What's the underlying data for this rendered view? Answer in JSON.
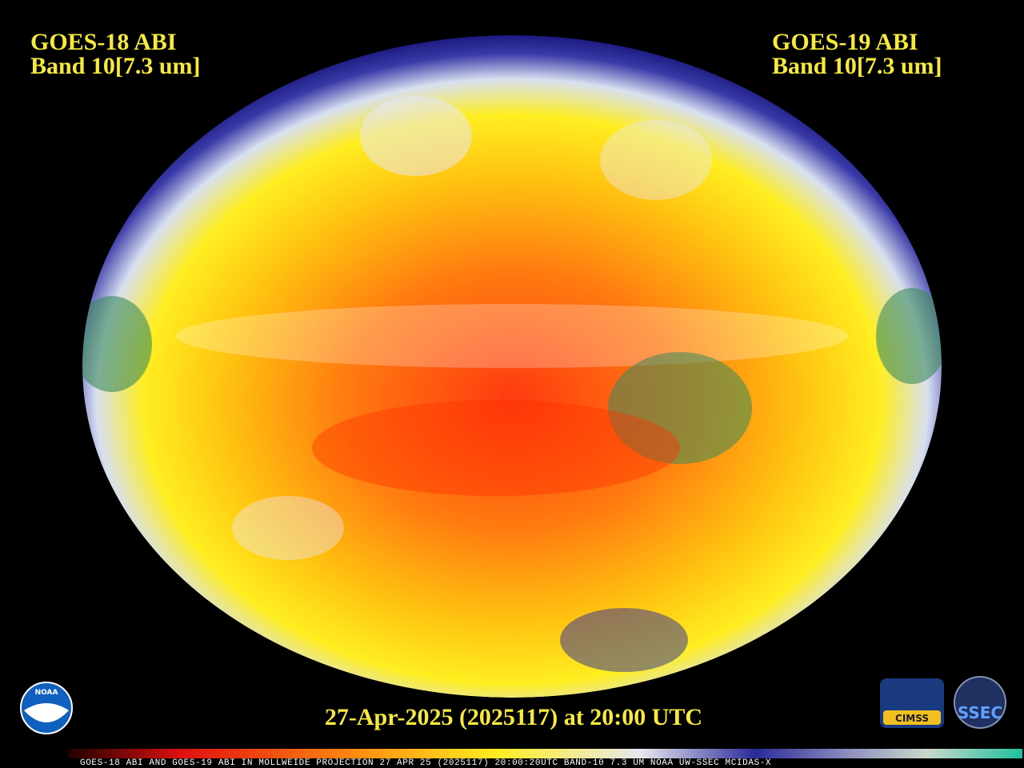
{
  "header": {
    "left": {
      "line1": "GOES-18 ABI",
      "line2": "Band 10[7.3 um]"
    },
    "right": {
      "line1": "GOES-19 ABI",
      "line2": "Band 10[7.3 um]"
    }
  },
  "timestamp": "27-Apr-2025 (2025117) at 20:00 UTC",
  "logos": {
    "noaa": "NOAA",
    "cimss": "CIMSS",
    "ssec": "SSEC"
  },
  "colorbar_caption": "GOES-18 ABI AND GOES-19 ABI IN MOLLWEIDE PROJECTION 27 APR 25 (2025117) 20:00:20UTC BAND-10 7.3 UM NOAA UW-SSEC MCIDAS-X"
}
